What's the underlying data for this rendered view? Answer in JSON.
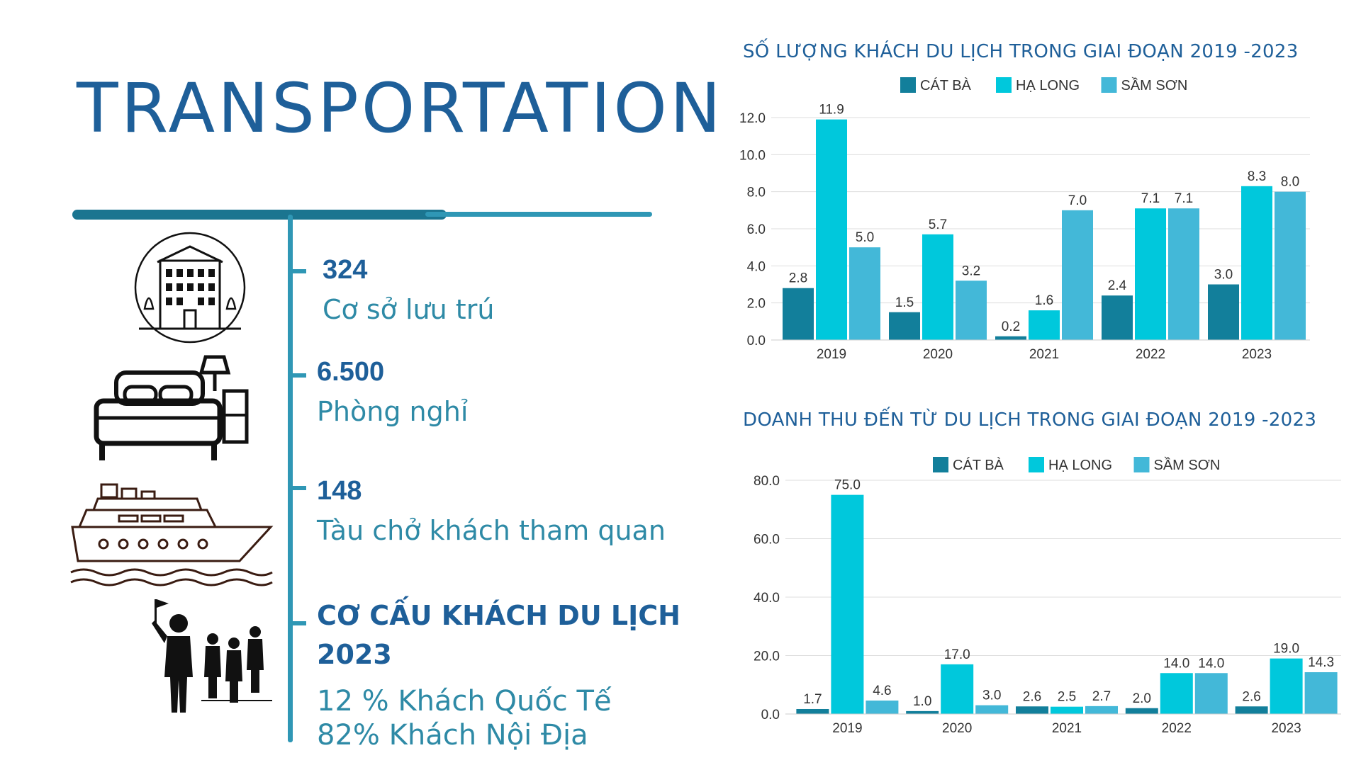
{
  "page": {
    "title": "TRANSPORTATION"
  },
  "stats": [
    {
      "value": "324",
      "label": "Cơ sở lưu trú",
      "icon": "hotel-building-icon"
    },
    {
      "value": "6.500",
      "label": "Phòng nghỉ",
      "icon": "bed-icon"
    },
    {
      "value": "148",
      "label": "Tàu chở khách tham quan",
      "icon": "cruise-ship-icon"
    }
  ],
  "visitor_structure": {
    "headline_1": "CƠ CẤU KHÁCH DU LỊCH",
    "headline_2": "2023",
    "line_1": "12 % Khách Quốc Tế",
    "line_2": "82% Khách Nội Địa",
    "icon": "tour-group-icon"
  },
  "colors": {
    "cat_ba": "#127f9b",
    "ha_long": "#00c8dc",
    "sam_son": "#43b8d8",
    "title": "#1e5f99",
    "accent": "#2e8aa6"
  },
  "chart_data": [
    {
      "type": "bar",
      "title": "SỐ LƯỢNG KHÁCH DU LỊCH TRONG GIAI ĐOẠN 2019 -2023",
      "categories": [
        "2019",
        "2020",
        "2021",
        "2022",
        "2023"
      ],
      "series": [
        {
          "name": "CÁT BÀ",
          "values": [
            2.8,
            1.5,
            0.2,
            2.4,
            3.0
          ]
        },
        {
          "name": "HẠ LONG",
          "values": [
            11.9,
            5.7,
            1.6,
            7.1,
            8.3
          ]
        },
        {
          "name": "SẦM SƠN",
          "values": [
            5.0,
            3.2,
            7.0,
            7.1,
            8.0
          ]
        }
      ],
      "ylim": [
        0,
        12
      ],
      "yticks": [
        "0.0",
        "2.0",
        "4.0",
        "6.0",
        "8.0",
        "10.0",
        "12.0"
      ],
      "legend": "top",
      "grid": true
    },
    {
      "type": "bar",
      "title": "DOANH THU ĐẾN TỪ DU LỊCH TRONG GIAI ĐOẠN 2019 -2023",
      "categories": [
        "2019",
        "2020",
        "2021",
        "2022",
        "2023"
      ],
      "series": [
        {
          "name": "CÁT BÀ",
          "values": [
            1.7,
            1.0,
            2.6,
            2.0,
            2.6
          ]
        },
        {
          "name": "HẠ LONG",
          "values": [
            75.0,
            17.0,
            2.5,
            14.0,
            19.0
          ]
        },
        {
          "name": "SẦM SƠN",
          "values": [
            4.6,
            3.0,
            2.7,
            14.0,
            14.3
          ]
        }
      ],
      "ylim": [
        0,
        80
      ],
      "yticks": [
        "0.0",
        "20.0",
        "40.0",
        "60.0",
        "80.0"
      ],
      "legend": "top",
      "grid": true
    }
  ]
}
